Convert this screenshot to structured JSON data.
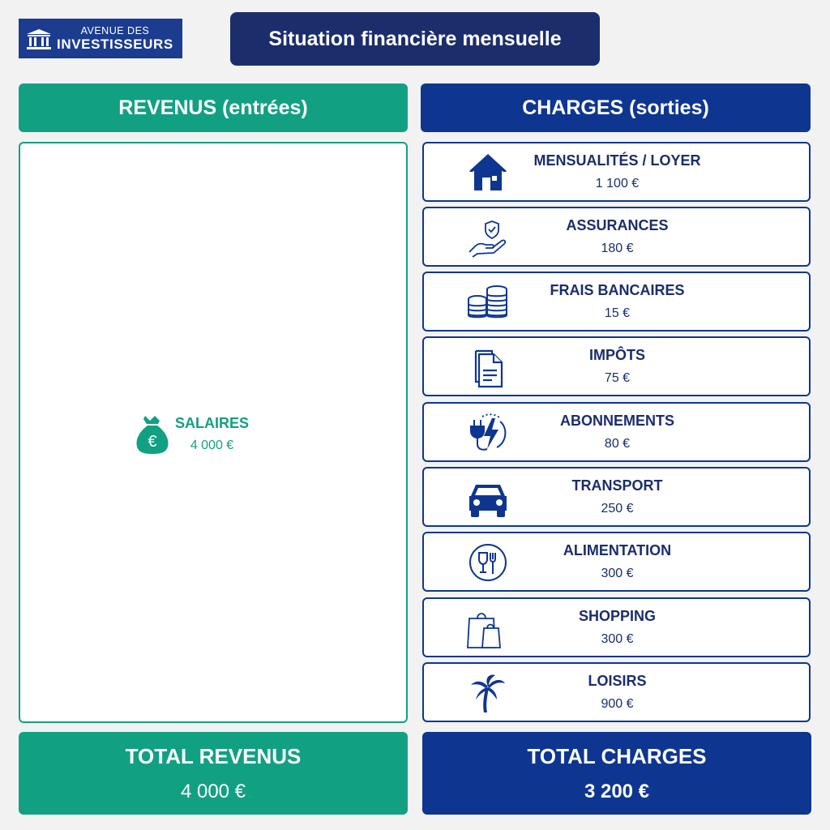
{
  "logo": {
    "line1": "AVENUE DES",
    "line2": "INVESTISSEURS"
  },
  "title": "Situation financière mensuelle",
  "revenus": {
    "header": "REVENUS (entrées)",
    "items": [
      {
        "label": "SALAIRES",
        "value": "4 000 €",
        "icon": "money-bag-euro-icon"
      }
    ],
    "total_label": "TOTAL REVENUS",
    "total_value": "4 000 €"
  },
  "charges": {
    "header": "CHARGES (sorties)",
    "items": [
      {
        "label": "MENSUALITÉS / LOYER",
        "value": "1 100 €",
        "icon": "house-icon"
      },
      {
        "label": "ASSURANCES",
        "value": "180 €",
        "icon": "hand-shield-icon"
      },
      {
        "label": "FRAIS BANCAIRES",
        "value": "15 €",
        "icon": "coins-icon"
      },
      {
        "label": "IMPÔTS",
        "value": "75 €",
        "icon": "documents-icon"
      },
      {
        "label": "ABONNEMENTS",
        "value": "80 €",
        "icon": "plug-lightning-icon"
      },
      {
        "label": "TRANSPORT",
        "value": "250 €",
        "icon": "car-icon"
      },
      {
        "label": "ALIMENTATION",
        "value": "300 €",
        "icon": "glass-fork-icon"
      },
      {
        "label": "SHOPPING",
        "value": "300 €",
        "icon": "shopping-bags-icon"
      },
      {
        "label": "LOISIRS",
        "value": "900 €",
        "icon": "palm-tree-icon"
      }
    ],
    "total_label": "TOTAL CHARGES",
    "total_value": "3 200 €"
  },
  "colors": {
    "green": "#12a083",
    "blue": "#0e3691",
    "navy": "#1b2d6b"
  }
}
